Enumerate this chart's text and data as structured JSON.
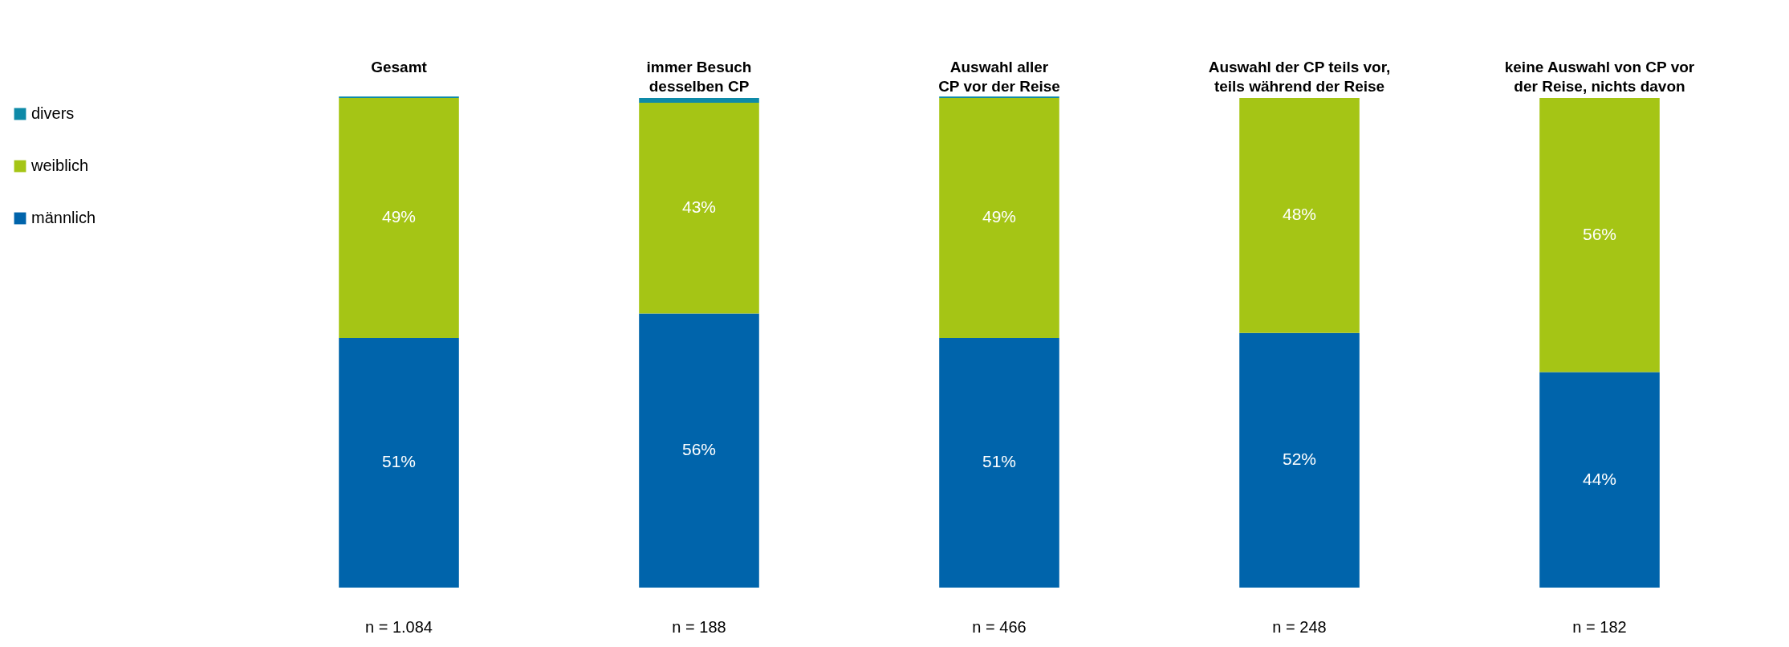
{
  "chart_data": {
    "type": "bar",
    "stacked": true,
    "categories": [
      "Gesamt",
      "immer Besuch desselben CP",
      "Auswahl aller CP vor der Reise",
      "Auswahl der CP teils vor, teils während der Reise",
      "keine Auswahl von CP vor der Reise, nichts davon"
    ],
    "series": [
      {
        "name": "männlich",
        "color": "#0064ab",
        "values": [
          51,
          56,
          51,
          52,
          44
        ],
        "value_labels": [
          "51%",
          "56%",
          "51%",
          "52%",
          "44%"
        ]
      },
      {
        "name": "weiblich",
        "color": "#a5c515",
        "values": [
          49,
          43,
          49,
          48,
          56
        ],
        "value_labels": [
          "49%",
          "43%",
          "49%",
          "48%",
          "56%"
        ]
      },
      {
        "name": "divers",
        "color": "#0e8aa8",
        "values": [
          0.3,
          1,
          0.3,
          null,
          null
        ],
        "value_labels": [
          null,
          null,
          null,
          null,
          null
        ]
      }
    ],
    "ylim": [
      0,
      100
    ],
    "tick_labels": "x",
    "legend": "left",
    "annotations": [
      "n = 1.084",
      "n = 188",
      "n = 466",
      "n = 248",
      "n = 182"
    ]
  }
}
